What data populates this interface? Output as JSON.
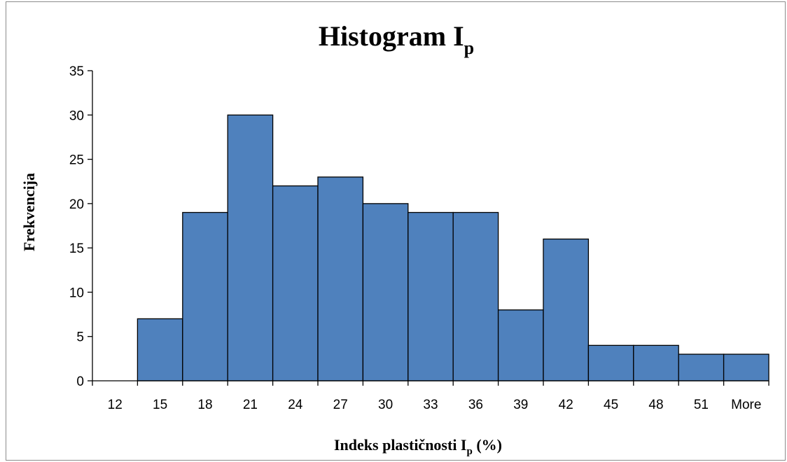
{
  "chart_data": {
    "type": "bar",
    "title": "Histogram I",
    "title_subscript": "p",
    "xlabel": "Indeks plastičnosti I",
    "xlabel_subscript": "p",
    "xlabel_suffix": " (%)",
    "ylabel": "Frekvencija",
    "categories": [
      "12",
      "15",
      "18",
      "21",
      "24",
      "27",
      "30",
      "33",
      "36",
      "39",
      "42",
      "45",
      "48",
      "51",
      "More"
    ],
    "values": [
      0,
      7,
      19,
      30,
      22,
      23,
      20,
      19,
      19,
      8,
      16,
      4,
      4,
      3,
      3
    ],
    "ylim": [
      0,
      35
    ],
    "yticks": [
      "0",
      "5",
      "10",
      "15",
      "20",
      "25",
      "30",
      "35"
    ],
    "grid": false,
    "legend": "none",
    "bar_color": "#4f81bd"
  }
}
